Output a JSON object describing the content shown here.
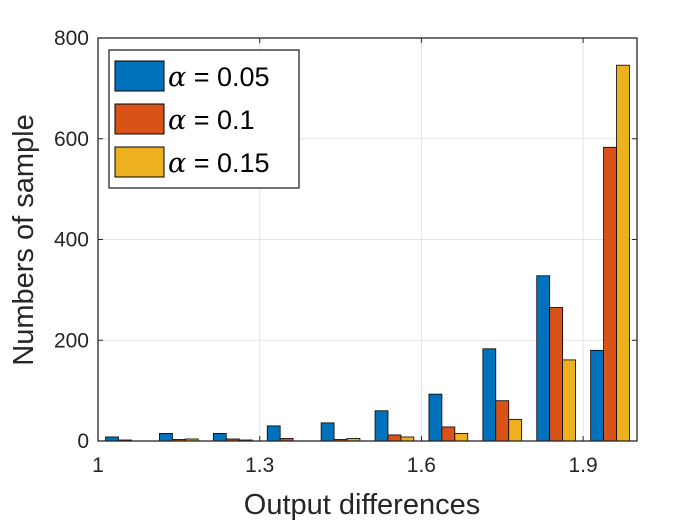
{
  "chart_data": {
    "type": "bar",
    "title": "",
    "xlabel": "Output differences",
    "ylabel": "Numbers of sample",
    "xlim": [
      1.0,
      2.0
    ],
    "ylim": [
      0,
      800
    ],
    "x_ticks": [
      1.0,
      1.3,
      1.6,
      1.9
    ],
    "x_tick_labels": [
      "1",
      "1.3",
      "1.6",
      "1.9"
    ],
    "y_ticks": [
      0,
      200,
      400,
      600,
      800
    ],
    "y_tick_labels": [
      "0",
      "200",
      "400",
      "600",
      "800"
    ],
    "grid": true,
    "legend_position": "top-left",
    "bin_centers": [
      1.05,
      1.15,
      1.25,
      1.35,
      1.45,
      1.55,
      1.65,
      1.75,
      1.85,
      1.95
    ],
    "series": [
      {
        "symbol": "α",
        "label": " = 0.05",
        "color": "#0072BD",
        "values": [
          8,
          15,
          15,
          30,
          36,
          60,
          93,
          183,
          328,
          180
        ]
      },
      {
        "symbol": "α",
        "label": " = 0.1",
        "color": "#D95319",
        "values": [
          2,
          3,
          4,
          5,
          3,
          12,
          28,
          80,
          265,
          583
        ]
      },
      {
        "symbol": "α",
        "label": " = 0.15",
        "color": "#EDB120",
        "values": [
          0,
          4,
          2,
          0,
          5,
          8,
          15,
          43,
          161,
          746
        ]
      }
    ]
  }
}
